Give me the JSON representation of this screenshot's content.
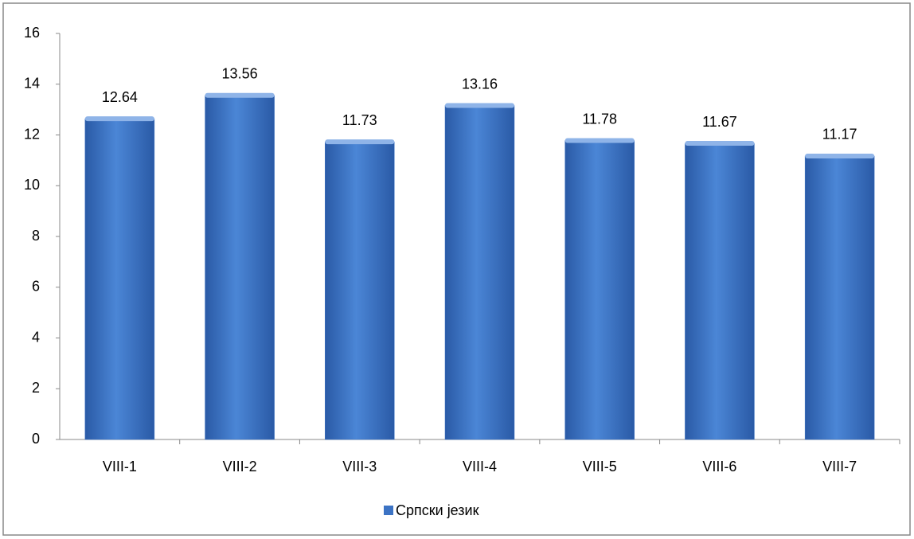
{
  "chart_data": {
    "type": "bar",
    "categories": [
      "VIII-1",
      "VIII-2",
      "VIII-3",
      "VIII-4",
      "VIII-5",
      "VIII-6",
      "VIII-7"
    ],
    "series": [
      {
        "name": "Српски језик",
        "color": "#3c73c4",
        "values": [
          12.64,
          13.56,
          11.73,
          13.16,
          11.78,
          11.67,
          11.17
        ]
      }
    ],
    "ylim": [
      0,
      16
    ],
    "yticks": [
      0,
      2,
      4,
      6,
      8,
      10,
      12,
      14,
      16
    ],
    "legend": "bottom"
  }
}
